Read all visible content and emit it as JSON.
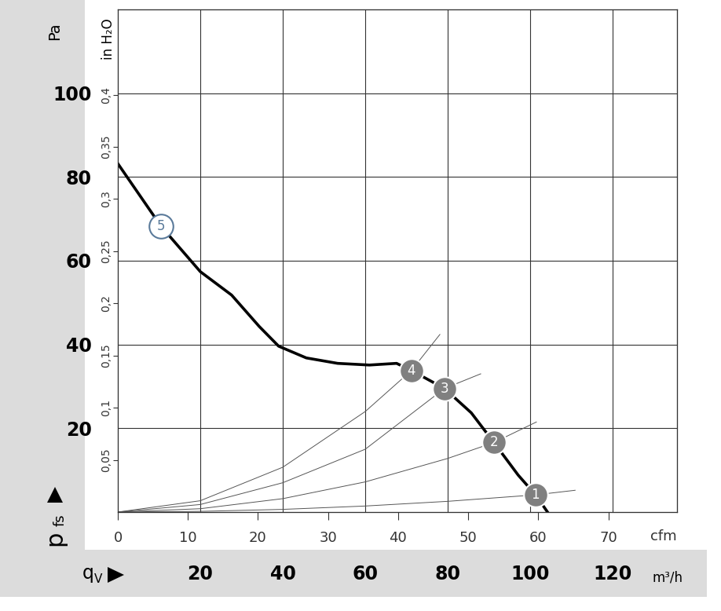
{
  "chart_data": {
    "type": "line",
    "xlabel": "q",
    "xlabel_subscript": "V",
    "xunit": "m³/h",
    "ylabel": "p",
    "ylabel_subscript": "fs",
    "yunit": "Pa",
    "x2label": "cfm",
    "y2unit": "in H₂O",
    "xlim": [
      0,
      135.6
    ],
    "xticks": [
      20,
      40,
      60,
      80,
      100,
      120
    ],
    "ylim": [
      0,
      120
    ],
    "yticks": [
      20,
      40,
      60,
      80,
      100
    ],
    "x2lim": [
      0,
      79.8
    ],
    "x2ticks": [
      0,
      10,
      20,
      30,
      40,
      50,
      60,
      70
    ],
    "y2lim": [
      0,
      0.4818
    ],
    "y2ticks": [
      {
        "value": 0.05,
        "label": "0,05"
      },
      {
        "value": 0.1,
        "label": "0,1"
      },
      {
        "value": 0.15,
        "label": "0,15"
      },
      {
        "value": 0.2,
        "label": "0,2"
      },
      {
        "value": 0.25,
        "label": "0,25"
      },
      {
        "value": 0.3,
        "label": "0,3"
      },
      {
        "value": 0.35,
        "label": "0,35"
      },
      {
        "value": 0.4,
        "label": "0,4"
      }
    ],
    "grid": true,
    "series": [
      {
        "color": "#000000",
        "line_style": "solid",
        "x": [
          0,
          10.5,
          20,
          27.6,
          34.3,
          39,
          45.7,
          53.3,
          61,
          67.6,
          71.2,
          79.2,
          85.7,
          91.2,
          97.1,
          101.3,
          104.2
        ],
        "values": [
          83.2,
          68.2,
          57.4,
          51.8,
          44.3,
          39.6,
          36.8,
          35.5,
          35.1,
          35.5,
          33.8,
          29.5,
          23.7,
          16.6,
          8.8,
          4.1,
          0
        ]
      },
      {
        "color": "#555555",
        "line_style": "solid",
        "x": [
          0,
          20,
          40,
          60,
          71.2,
          78.1
        ],
        "values": [
          0,
          2.7,
          10.7,
          24.0,
          33.8,
          42.4
        ]
      },
      {
        "color": "#555555",
        "line_style": "solid",
        "x": [
          0,
          20,
          40,
          60,
          79.2,
          88
        ],
        "values": [
          0,
          1.8,
          7.0,
          15.0,
          29.5,
          33.0
        ]
      },
      {
        "color": "#555555",
        "line_style": "solid",
        "x": [
          0,
          20,
          40,
          60,
          80,
          91.2,
          101.5
        ],
        "values": [
          0,
          0.8,
          3.2,
          7.2,
          12.8,
          16.6,
          21.5
        ]
      },
      {
        "color": "#555555",
        "line_style": "solid",
        "x": [
          0,
          20,
          40,
          60,
          80,
          101.3,
          110.9
        ],
        "values": [
          0,
          0.16,
          0.64,
          1.44,
          2.56,
          4.1,
          5.2
        ]
      }
    ],
    "annotations": [
      {
        "text": "1",
        "x": 101.3,
        "y": 4.1,
        "color": "#808080",
        "marker": "filled"
      },
      {
        "text": "2",
        "x": 91.2,
        "y": 16.6,
        "color": "#808080",
        "marker": "filled"
      },
      {
        "text": "3",
        "x": 79.2,
        "y": 29.5,
        "color": "#808080",
        "marker": "filled"
      },
      {
        "text": "4",
        "x": 71.2,
        "y": 33.8,
        "color": "#808080",
        "marker": "filled"
      },
      {
        "text": "5",
        "x": 10.5,
        "y": 68.2,
        "color": "#5a7a9a",
        "marker": "open"
      }
    ]
  }
}
